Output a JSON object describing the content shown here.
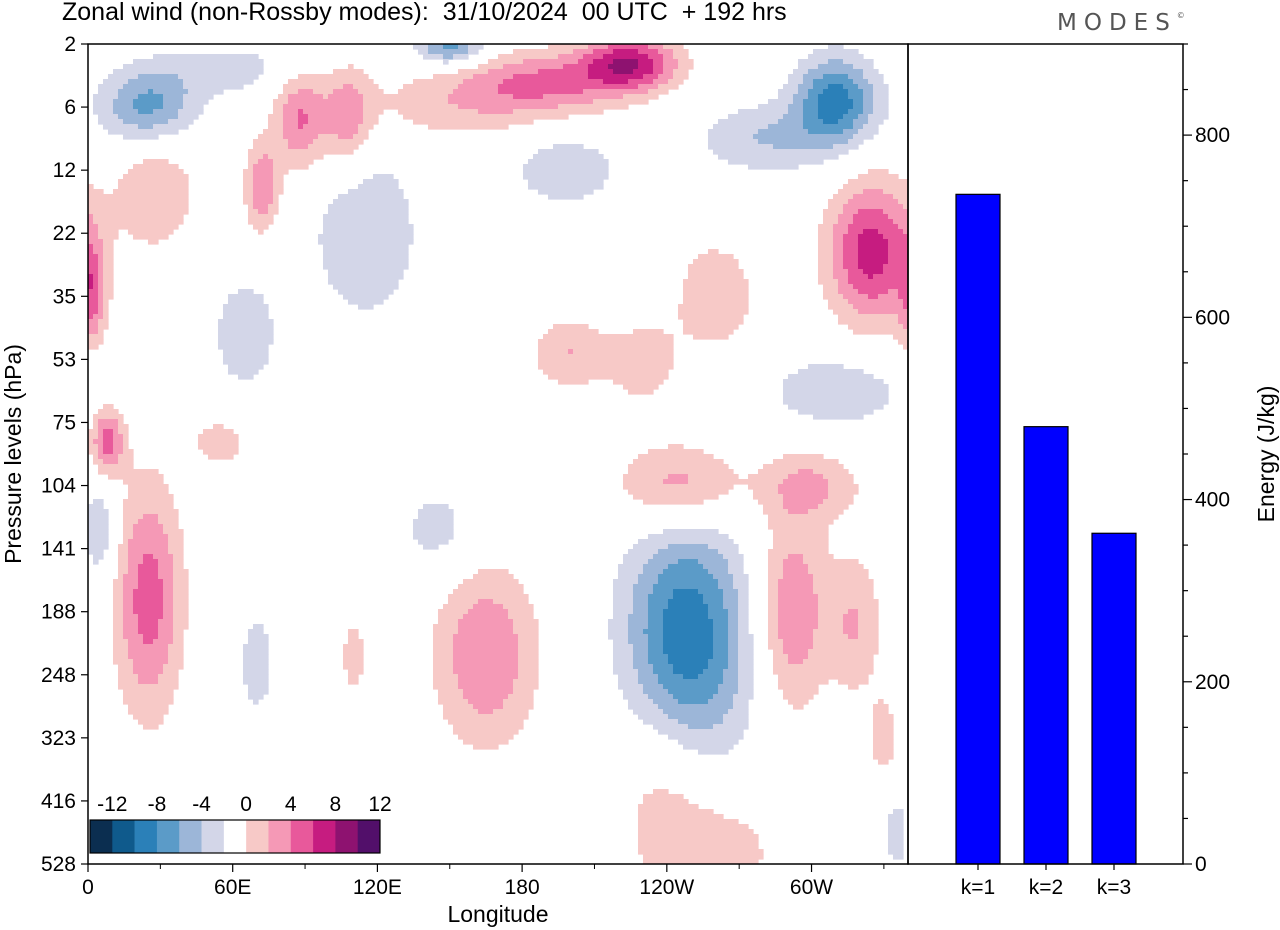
{
  "header": {
    "title": "Zonal wind (non-Rossby modes):  31/10/2024  00 UTC  + 192 hrs",
    "logo": "MODES",
    "logo_mark": "©"
  },
  "chart_data": [
    {
      "type": "heatmap",
      "title": "Zonal wind (non-Rossby modes):  31/10/2024  00 UTC  + 192 hrs",
      "xlabel": "Longitude",
      "ylabel": "Pressure levels (hPa)",
      "x_ticks": [
        "0",
        "60E",
        "120E",
        "180",
        "120W",
        "60W"
      ],
      "x_tick_values": [
        0,
        60,
        120,
        180,
        240,
        300
      ],
      "xlim": [
        0,
        340
      ],
      "y_ticks": [
        "2",
        "6",
        "12",
        "22",
        "35",
        "53",
        "75",
        "104",
        "141",
        "188",
        "248",
        "323",
        "416",
        "528"
      ],
      "colorbar": {
        "labels": [
          "-12",
          "-8",
          "-4",
          "0",
          "4",
          "8",
          "12"
        ],
        "bounds": [
          -14,
          -12,
          -10,
          -8,
          -6,
          -4,
          -2,
          2,
          4,
          6,
          8,
          10,
          12,
          14
        ],
        "colors": [
          "#0b2e50",
          "#0f5a8c",
          "#2b80b8",
          "#5b9bc8",
          "#9cb6d8",
          "#d3d6e8",
          "#ffffff",
          "#f7c9c7",
          "#f599b6",
          "#e8599b",
          "#c61c80",
          "#8e1270",
          "#520f6a"
        ]
      },
      "colors": {
        "positive_weak": "#f7c9c7",
        "positive_mid": "#f599b6",
        "positive_strong": "#e8599b",
        "negative_weak": "#d3d6e8",
        "negative_mid": "#9cb6d8",
        "negative_strong": "#5b9bc8"
      },
      "features": [
        {
          "sign": -1,
          "lon": 25,
          "lvl": 1.0,
          "amp": 7,
          "w": 14,
          "h": 0.45
        },
        {
          "sign": -1,
          "lon": 60,
          "lvl": 0.4,
          "amp": 3,
          "w": 20,
          "h": 0.3
        },
        {
          "sign": 1,
          "lon": 88,
          "lvl": 1.2,
          "amp": 6,
          "w": 8,
          "h": 0.6
        },
        {
          "sign": 1,
          "lon": 108,
          "lvl": 1.2,
          "amp": 5,
          "w": 7,
          "h": 0.6
        },
        {
          "sign": 1,
          "lon": 28,
          "lvl": 2.3,
          "amp": 4,
          "w": 12,
          "h": 0.7
        },
        {
          "sign": 1,
          "lon": 72,
          "lvl": 2.3,
          "amp": 6,
          "w": 5,
          "h": 0.5
        },
        {
          "sign": -1,
          "lon": 115,
          "lvl": 3.0,
          "amp": 4,
          "w": 16,
          "h": 1.0
        },
        {
          "sign": 1,
          "lon": 150,
          "lvl": 1.0,
          "amp": 3,
          "w": 30,
          "h": 0.4
        },
        {
          "sign": 1,
          "lon": 190,
          "lvl": 0.6,
          "amp": 6,
          "w": 25,
          "h": 0.35
        },
        {
          "sign": 1,
          "lon": 225,
          "lvl": 0.3,
          "amp": 9,
          "w": 14,
          "h": 0.3
        },
        {
          "sign": -1,
          "lon": 150,
          "lvl": 0.05,
          "amp": 7,
          "w": 10,
          "h": 0.2
        },
        {
          "sign": -1,
          "lon": 198,
          "lvl": 2.0,
          "amp": 4,
          "w": 15,
          "h": 0.4
        },
        {
          "sign": -1,
          "lon": 280,
          "lvl": 1.5,
          "amp": 4,
          "w": 20,
          "h": 0.4
        },
        {
          "sign": -1,
          "lon": 310,
          "lvl": 0.9,
          "amp": 9,
          "w": 12,
          "h": 0.5
        },
        {
          "sign": 1,
          "lon": 325,
          "lvl": 3.3,
          "amp": 9,
          "w": 13,
          "h": 0.8
        },
        {
          "sign": 1,
          "lon": 260,
          "lvl": 4.0,
          "amp": 3,
          "w": 15,
          "h": 0.8
        },
        {
          "sign": 1,
          "lon": 2,
          "lvl": 4.0,
          "amp": 5,
          "w": 4,
          "h": 0.6
        },
        {
          "sign": -1,
          "lon": 65,
          "lvl": 4.6,
          "amp": 3,
          "w": 12,
          "h": 0.8
        },
        {
          "sign": 1,
          "lon": 200,
          "lvl": 4.9,
          "amp": 4,
          "w": 12,
          "h": 0.4
        },
        {
          "sign": 1,
          "lon": 230,
          "lvl": 5.1,
          "amp": 3,
          "w": 10,
          "h": 0.5
        },
        {
          "sign": -1,
          "lon": 310,
          "lvl": 5.5,
          "amp": 4,
          "w": 20,
          "h": 0.4
        },
        {
          "sign": 1,
          "lon": 8,
          "lvl": 6.3,
          "amp": 7,
          "w": 5,
          "h": 0.4
        },
        {
          "sign": 1,
          "lon": 55,
          "lvl": 6.3,
          "amp": 3,
          "w": 10,
          "h": 0.35
        },
        {
          "sign": 1,
          "lon": 245,
          "lvl": 7.0,
          "amp": 6,
          "w": 18,
          "h": 0.5
        },
        {
          "sign": 1,
          "lon": 300,
          "lvl": 7.0,
          "amp": 4,
          "w": 15,
          "h": 0.4
        },
        {
          "sign": 1,
          "lon": 25,
          "lvl": 8.8,
          "amp": 7,
          "w": 10,
          "h": 1.3
        },
        {
          "sign": -1,
          "lon": 5,
          "lvl": 7.7,
          "amp": 4,
          "w": 5,
          "h": 0.6
        },
        {
          "sign": -1,
          "lon": 145,
          "lvl": 7.7,
          "amp": 3,
          "w": 12,
          "h": 0.5
        },
        {
          "sign": -1,
          "lon": 248,
          "lvl": 9.5,
          "amp": 10,
          "w": 18,
          "h": 1.4
        },
        {
          "sign": 1,
          "lon": 165,
          "lvl": 9.7,
          "amp": 6,
          "w": 15,
          "h": 1.0
        },
        {
          "sign": 1,
          "lon": 292,
          "lvl": 9.0,
          "amp": 6,
          "w": 10,
          "h": 1.1
        },
        {
          "sign": 1,
          "lon": 318,
          "lvl": 9.2,
          "amp": 4,
          "w": 8,
          "h": 0.8
        },
        {
          "sign": -1,
          "lon": 70,
          "lvl": 9.8,
          "amp": 3,
          "w": 6,
          "h": 0.7
        },
        {
          "sign": 1,
          "lon": 110,
          "lvl": 9.7,
          "amp": 3,
          "w": 4,
          "h": 0.5
        },
        {
          "sign": 1,
          "lon": 240,
          "lvl": 11.8,
          "amp": 4,
          "w": 15,
          "h": 1.2
        },
        {
          "sign": 1,
          "lon": 265,
          "lvl": 12.8,
          "amp": 3,
          "w": 16,
          "h": 0.6
        },
        {
          "sign": -1,
          "lon": 335,
          "lvl": 12.5,
          "amp": 3,
          "w": 4,
          "h": 0.5
        },
        {
          "sign": 1,
          "lon": 330,
          "lvl": 11.0,
          "amp": 3,
          "w": 5,
          "h": 0.5
        }
      ]
    },
    {
      "type": "bar",
      "categories": [
        "k=1",
        "k=2",
        "k=3"
      ],
      "values": [
        735,
        480,
        363
      ],
      "ylabel": "Energy (J/kg)",
      "y_ticks": [
        0,
        200,
        400,
        600,
        800
      ],
      "ylim": [
        0,
        900
      ],
      "bar_color": "#0000ff"
    }
  ]
}
